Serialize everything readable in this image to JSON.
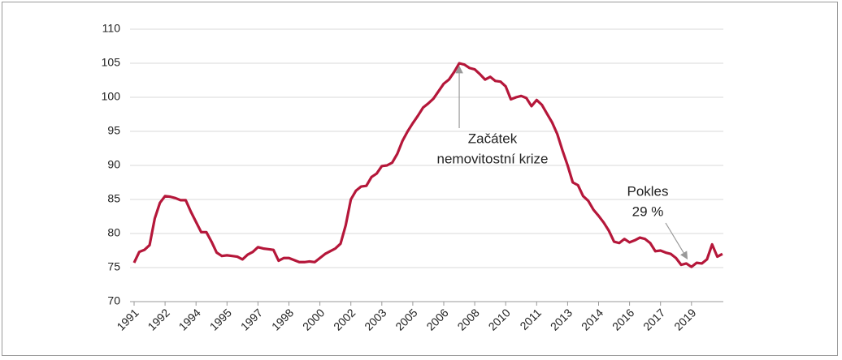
{
  "chart_data": {
    "type": "line",
    "categories": [
      "1991",
      null,
      null,
      null,
      null,
      null,
      "1992",
      null,
      null,
      null,
      null,
      null,
      "1994",
      null,
      null,
      null,
      null,
      null,
      "1995",
      null,
      null,
      null,
      null,
      null,
      "1997",
      null,
      null,
      null,
      null,
      null,
      "1998",
      null,
      null,
      null,
      null,
      null,
      "2000",
      null,
      null,
      null,
      null,
      null,
      "2002",
      null,
      null,
      null,
      null,
      null,
      "2003",
      null,
      null,
      null,
      null,
      null,
      "2005",
      null,
      null,
      null,
      null,
      null,
      "2006",
      null,
      null,
      null,
      null,
      null,
      "2008",
      null,
      null,
      null,
      null,
      null,
      "2010",
      null,
      null,
      null,
      null,
      null,
      "2011",
      null,
      null,
      null,
      null,
      null,
      "2013",
      null,
      null,
      null,
      null,
      null,
      "2014",
      null,
      null,
      null,
      null,
      null,
      "2016",
      null,
      null,
      null,
      null,
      null,
      "2017",
      null,
      null,
      null,
      null,
      null,
      "2019",
      null,
      null,
      null,
      null,
      null,
      null
    ],
    "values": [
      75.7,
      77.3,
      77.6,
      78.3,
      82.2,
      84.5,
      85.5,
      85.4,
      85.2,
      84.9,
      84.9,
      83.2,
      81.7,
      80.2,
      80.2,
      78.8,
      77.2,
      76.7,
      76.8,
      76.7,
      76.6,
      76.2,
      76.9,
      77.3,
      78.0,
      77.8,
      77.7,
      77.6,
      76.0,
      76.4,
      76.4,
      76.1,
      75.8,
      75.8,
      75.9,
      75.8,
      76.4,
      77.0,
      77.4,
      77.8,
      78.5,
      81.2,
      85.0,
      86.3,
      86.9,
      87.0,
      88.3,
      88.8,
      89.9,
      90.0,
      90.4,
      91.7,
      93.6,
      95.0,
      96.2,
      97.3,
      98.5,
      99.1,
      99.8,
      100.9,
      102.0,
      102.6,
      103.7,
      105.0,
      104.8,
      104.3,
      104.1,
      103.4,
      102.6,
      103.0,
      102.4,
      102.3,
      101.6,
      99.7,
      100.0,
      100.2,
      99.9,
      98.7,
      99.6,
      98.9,
      97.6,
      96.3,
      94.6,
      92.2,
      90.0,
      87.5,
      87.1,
      85.5,
      84.8,
      83.5,
      82.6,
      81.6,
      80.4,
      78.8,
      78.6,
      79.2,
      78.7,
      79.0,
      79.4,
      79.2,
      78.6,
      77.4,
      77.5,
      77.2,
      77.0,
      76.4,
      75.4,
      75.6,
      75.1,
      75.7,
      75.6,
      76.2,
      78.4,
      76.6,
      77.0
    ],
    "color": "#b5173a",
    "ylim": [
      70,
      110
    ],
    "yticks": [
      70,
      75,
      80,
      85,
      90,
      95,
      100,
      105,
      110
    ],
    "grid": true,
    "annotations": [
      {
        "lines": [
          "Začátek",
          "nemovitostní krize"
        ]
      },
      {
        "lines": [
          "Pokles",
          "29 %"
        ]
      }
    ]
  }
}
